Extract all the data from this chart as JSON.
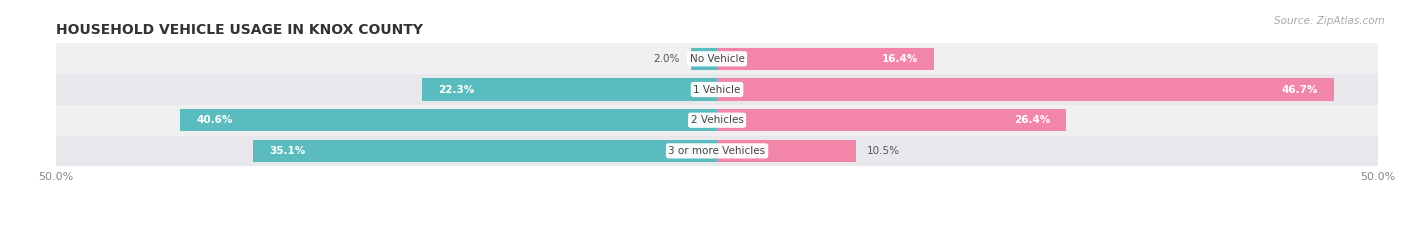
{
  "title": "HOUSEHOLD VEHICLE USAGE IN KNOX COUNTY",
  "source": "Source: ZipAtlas.com",
  "categories": [
    "No Vehicle",
    "1 Vehicle",
    "2 Vehicles",
    "3 or more Vehicles"
  ],
  "owner_values": [
    2.0,
    22.3,
    40.6,
    35.1
  ],
  "renter_values": [
    16.4,
    46.7,
    26.4,
    10.5
  ],
  "owner_color": "#5abcbf",
  "renter_color": "#f285a8",
  "axis_max": 50.0,
  "title_fontsize": 10,
  "source_fontsize": 7.5,
  "value_fontsize": 7.5,
  "tick_fontsize": 8,
  "category_fontsize": 7.5,
  "bar_height": 0.72,
  "row_bg_colors": [
    "#f0f0f2",
    "#e8e8ec",
    "#f0f0f2",
    "#e8e8ec"
  ],
  "row_separator_color": "#ffffff"
}
